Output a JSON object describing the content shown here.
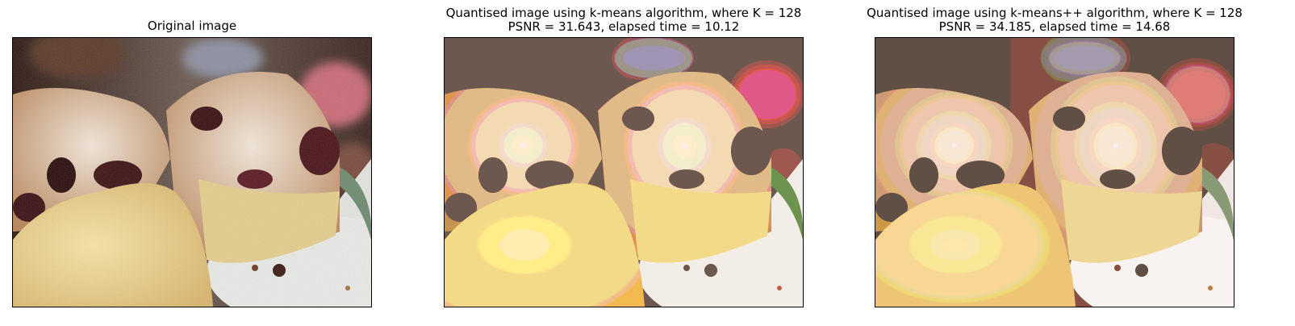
{
  "panels": [
    {
      "title_lines": [
        "Original image"
      ],
      "posterize": false
    },
    {
      "title_lines": [
        "Quantised image using k-means algorithm, where K = 128",
        "PSNR = 31.643, elapsed time = 10.12"
      ],
      "posterize": true
    },
    {
      "title_lines": [
        "Quantised image using k-means++ algorithm, where K = 128",
        "PSNR = 34.185, elapsed time = 14.68"
      ],
      "posterize": false
    }
  ],
  "colors": {
    "background_dark": "#3a2418",
    "cake_crust": "#c79a6a",
    "cake_sugar": "#ead9c4",
    "cake_crumb": "#e8cf8c",
    "cherry": "#3a0f10",
    "plate": "#e6e6e3",
    "blur_pink": "#c96a76"
  }
}
